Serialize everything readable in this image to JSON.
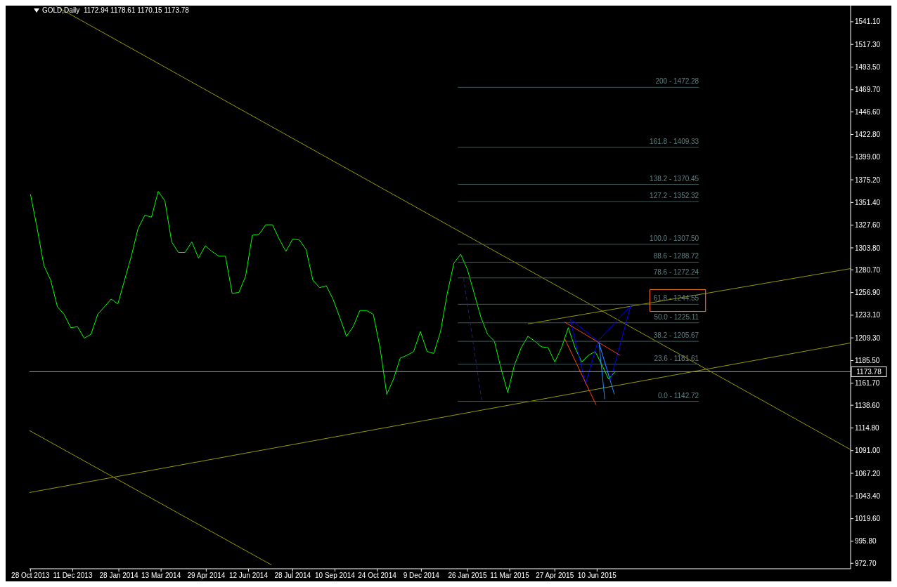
{
  "chart_data": {
    "type": "line",
    "title": "GOLD,Daily  1172.94 1178.61 1170.15 1173.78",
    "marker": "none",
    "xlim": [
      "2013-10-27",
      "2016-02-29"
    ],
    "xticks": [
      {
        "value": "2013-10-28",
        "label": "28 Oct 2013"
      },
      {
        "value": "2013-12-11",
        "label": "11 Dec 2013"
      },
      {
        "value": "2014-01-28",
        "label": "28 Jan 2014"
      },
      {
        "value": "2014-03-13",
        "label": "13 Mar 2014"
      },
      {
        "value": "2014-04-29",
        "label": "29 Apr 2014"
      },
      {
        "value": "2014-06-12",
        "label": "12 Jun 2014"
      },
      {
        "value": "2014-07-28",
        "label": "28 Jul 2014"
      },
      {
        "value": "2014-09-10",
        "label": "10 Sep 2014"
      },
      {
        "value": "2014-10-24",
        "label": "24 Oct 2014"
      },
      {
        "value": "2014-12-09",
        "label": "9 Dec 2014"
      },
      {
        "value": "2015-01-26",
        "label": "26 Jan 2015"
      },
      {
        "value": "2015-03-11",
        "label": "11 Mar 2015"
      },
      {
        "value": "2015-04-27",
        "label": "27 Apr 2015"
      },
      {
        "value": "2015-06-10",
        "label": "10 Jun 2015"
      }
    ],
    "ylim": [
      967,
      1558
    ],
    "yticks": [
      {
        "value": 1541.1,
        "label": "1541.10"
      },
      {
        "value": 1517.3,
        "label": "1517.30"
      },
      {
        "value": 1493.5,
        "label": "1493.50"
      },
      {
        "value": 1469.7,
        "label": "1469.70"
      },
      {
        "value": 1446.6,
        "label": "1446.60"
      },
      {
        "value": 1422.8,
        "label": "1422.80"
      },
      {
        "value": 1399,
        "label": "1399.00"
      },
      {
        "value": 1375.2,
        "label": "1375.20"
      },
      {
        "value": 1351.4,
        "label": "1351.40"
      },
      {
        "value": 1327.6,
        "label": "1327.60"
      },
      {
        "value": 1303.8,
        "label": "1303.80"
      },
      {
        "value": 1280.7,
        "label": "1280.70"
      },
      {
        "value": 1256.9,
        "label": "1256.90"
      },
      {
        "value": 1233.1,
        "label": "1233.10"
      },
      {
        "value": 1209.3,
        "label": "1209.30"
      },
      {
        "value": 1185.5,
        "label": "1185.50"
      },
      {
        "value": 1161.7,
        "label": "1161.70"
      },
      {
        "value": 1138.6,
        "label": "1138.60"
      },
      {
        "value": 1114.8,
        "label": "1114.80"
      },
      {
        "value": 1091,
        "label": "1091.00"
      },
      {
        "value": 1067.2,
        "label": "1067.20"
      },
      {
        "value": 1043.4,
        "label": "1043.40"
      },
      {
        "value": 1019.6,
        "label": "1019.60"
      },
      {
        "value": 995.8,
        "label": "995.80"
      },
      {
        "value": 972.7,
        "label": "972.70"
      }
    ],
    "ref_lines": [
      {
        "axis": "y",
        "value": 1173.78,
        "label": "1173.78",
        "color": "#8ea2bf"
      }
    ],
    "series": [
      {
        "color": "#00ff00",
        "x": [
          "2013-10-28",
          "2013-11-04",
          "2013-11-11",
          "2013-11-18",
          "2013-11-25",
          "2013-12-02",
          "2013-12-09",
          "2013-12-16",
          "2013-12-23",
          "2013-12-30",
          "2014-01-06",
          "2014-01-13",
          "2014-01-20",
          "2014-01-27",
          "2014-02-03",
          "2014-02-10",
          "2014-02-17",
          "2014-02-24",
          "2014-03-03",
          "2014-03-10",
          "2014-03-17",
          "2014-03-24",
          "2014-03-31",
          "2014-04-07",
          "2014-04-14",
          "2014-04-21",
          "2014-04-28",
          "2014-05-05",
          "2014-05-12",
          "2014-05-19",
          "2014-05-26",
          "2014-06-02",
          "2014-06-09",
          "2014-06-16",
          "2014-06-23",
          "2014-06-30",
          "2014-07-07",
          "2014-07-14",
          "2014-07-21",
          "2014-07-28",
          "2014-08-04",
          "2014-08-11",
          "2014-08-18",
          "2014-08-25",
          "2014-09-01",
          "2014-09-08",
          "2014-09-15",
          "2014-09-22",
          "2014-09-29",
          "2014-10-06",
          "2014-10-13",
          "2014-10-20",
          "2014-10-27",
          "2014-11-03",
          "2014-11-10",
          "2014-11-17",
          "2014-11-24",
          "2014-12-01",
          "2014-12-08",
          "2014-12-15",
          "2014-12-22",
          "2014-12-29",
          "2015-01-05",
          "2015-01-12",
          "2015-01-19",
          "2015-01-26",
          "2015-02-02",
          "2015-02-09",
          "2015-02-16",
          "2015-02-23",
          "2015-03-02",
          "2015-03-09",
          "2015-03-16",
          "2015-03-23",
          "2015-03-30",
          "2015-04-06",
          "2015-04-13",
          "2015-04-20",
          "2015-04-27",
          "2015-05-04",
          "2015-05-11",
          "2015-05-18",
          "2015-05-25",
          "2015-06-01",
          "2015-06-08",
          "2015-06-15",
          "2015-06-22",
          "2015-06-29"
        ],
        "values": [
          1360,
          1324,
          1285,
          1270,
          1242,
          1234,
          1220,
          1221,
          1209,
          1213,
          1234,
          1242,
          1250,
          1245,
          1270,
          1295,
          1324,
          1338,
          1336,
          1363,
          1353,
          1310,
          1299,
          1299,
          1310,
          1293,
          1306,
          1300,
          1295,
          1295,
          1256,
          1257,
          1274,
          1317,
          1318,
          1328,
          1328,
          1313,
          1300,
          1313,
          1312,
          1302,
          1270,
          1262,
          1264,
          1250,
          1231,
          1211,
          1221,
          1238,
          1238,
          1234,
          1199,
          1150,
          1166,
          1188,
          1191,
          1195,
          1216,
          1195,
          1193,
          1216,
          1256,
          1288,
          1297,
          1281,
          1256,
          1231,
          1213,
          1206,
          1177,
          1152,
          1181,
          1199,
          1211,
          1206,
          1200,
          1199,
          1184,
          1199,
          1220,
          1199,
          1184,
          1191,
          1195,
          1181,
          1166,
          1174
        ]
      },
      {
        "color": "#999900",
        "x": [
          "2013-11-24",
          "2016-02-29"
        ],
        "values": [
          1557,
          1092
        ]
      },
      {
        "color": "#999900",
        "x": [
          "2013-10-27",
          "2016-02-29"
        ],
        "values": [
          1047,
          1204
        ]
      },
      {
        "color": "#999900",
        "x": [
          "2015-03-30",
          "2016-02-29"
        ],
        "values": [
          1224,
          1282
        ]
      },
      {
        "color": "#999900",
        "x": [
          "2013-10-27",
          "2014-07-06"
        ],
        "values": [
          1112,
          971
        ]
      },
      {
        "name": "200 - 1472.28",
        "color": "#3e5b5b",
        "x": [
          "2015-01-16",
          "2015-09-24"
        ],
        "values": [
          1472.28,
          1472.28
        ]
      },
      {
        "name": "161.8 - 1409.33",
        "color": "#3e5b5b",
        "x": [
          "2015-01-16",
          "2015-09-24"
        ],
        "values": [
          1409.33,
          1409.33
        ]
      },
      {
        "name": "138.2 - 1370.45",
        "color": "#3e5b5b",
        "x": [
          "2015-01-16",
          "2015-09-24"
        ],
        "values": [
          1370.45,
          1370.45
        ]
      },
      {
        "name": "127.2 - 1352.32",
        "color": "#3e5b5b",
        "x": [
          "2015-01-16",
          "2015-09-24"
        ],
        "values": [
          1352.32,
          1352.32
        ]
      },
      {
        "name": "100.0 - 1307.50",
        "color": "#3e5b5b",
        "x": [
          "2015-01-16",
          "2015-09-24"
        ],
        "values": [
          1307.5,
          1307.5
        ]
      },
      {
        "name": "88.6 - 1288.72",
        "color": "#3e5b5b",
        "x": [
          "2015-01-16",
          "2015-09-24"
        ],
        "values": [
          1288.72,
          1288.72
        ]
      },
      {
        "name": "78.6 - 1272.24",
        "color": "#3e5b5b",
        "x": [
          "2015-01-16",
          "2015-09-24"
        ],
        "values": [
          1272.24,
          1272.24
        ]
      },
      {
        "name": "61.8 - 1244.55",
        "color": "#3e5b5b",
        "x": [
          "2015-01-16",
          "2015-09-24"
        ],
        "values": [
          1244.55,
          1244.55
        ]
      },
      {
        "name": "50.0 - 1225.11",
        "color": "#3e5b5b",
        "x": [
          "2015-01-16",
          "2015-09-24"
        ],
        "values": [
          1225.11,
          1225.11
        ]
      },
      {
        "name": "38.2 - 1205.67",
        "color": "#3e5b5b",
        "x": [
          "2015-01-16",
          "2015-09-24"
        ],
        "values": [
          1205.67,
          1205.67
        ]
      },
      {
        "name": "23.6 - 1181.61",
        "color": "#3e5b5b",
        "x": [
          "2015-01-16",
          "2015-09-24"
        ],
        "values": [
          1181.61,
          1181.61
        ]
      },
      {
        "name": "0.0 - 1142.72",
        "color": "#3e5b5b",
        "x": [
          "2015-01-16",
          "2015-09-24"
        ],
        "values": [
          1142.72,
          1142.72
        ]
      },
      {
        "color": "#22226e",
        "line_style": "dashed",
        "x": [
          "2015-01-22",
          "2015-02-10"
        ],
        "values": [
          1272,
          1143
        ]
      },
      {
        "color": "#0000ff",
        "x": [
          "2015-05-13",
          "2015-06-11"
        ],
        "values": [
          1229,
          1206
        ]
      },
      {
        "color": "#0000ff",
        "x": [
          "2015-05-13",
          "2015-05-29"
        ],
        "values": [
          1229,
          1161
        ]
      },
      {
        "color": "#0000ff",
        "x": [
          "2015-05-29",
          "2015-06-11"
        ],
        "values": [
          1161,
          1206
        ]
      },
      {
        "color": "#0000ff",
        "x": [
          "2015-06-11",
          "2015-07-15"
        ],
        "values": [
          1206,
          1243
        ]
      },
      {
        "color": "#0000ff",
        "x": [
          "2015-06-11",
          "2015-06-24"
        ],
        "values": [
          1206,
          1165
        ]
      },
      {
        "color": "#0000ff",
        "x": [
          "2015-06-24",
          "2015-07-15"
        ],
        "values": [
          1165,
          1243
        ]
      },
      {
        "color": "#ff4500",
        "x": [
          "2015-05-07",
          "2015-07-04"
        ],
        "values": [
          1226,
          1191
        ]
      },
      {
        "color": "#ff4500",
        "x": [
          "2015-05-07",
          "2015-06-09"
        ],
        "values": [
          1209,
          1139
        ]
      },
      {
        "color": "#1e90ff",
        "x": [
          "2015-06-12",
          "2015-06-18"
        ],
        "values": [
          1204,
          1145
        ]
      },
      {
        "color": "#1e90ff",
        "x": [
          "2015-06-12",
          "2015-06-28"
        ],
        "values": [
          1204,
          1150
        ]
      },
      {
        "color": "#ff7f2a",
        "x": [
          "2015-08-04",
          "2015-10-01"
        ],
        "values": [
          1260,
          1260
        ]
      },
      {
        "color": "#ff7f2a",
        "x": [
          "2015-08-04",
          "2015-10-01"
        ],
        "values": [
          1237,
          1237
        ]
      },
      {
        "color": "#ff7f2a",
        "x": [
          "2015-08-04",
          "2015-08-04"
        ],
        "values": [
          1237,
          1260
        ]
      },
      {
        "color": "#ff7f2a",
        "x": [
          "2015-10-01",
          "2015-10-01"
        ],
        "values": [
          1237,
          1260
        ]
      }
    ]
  }
}
